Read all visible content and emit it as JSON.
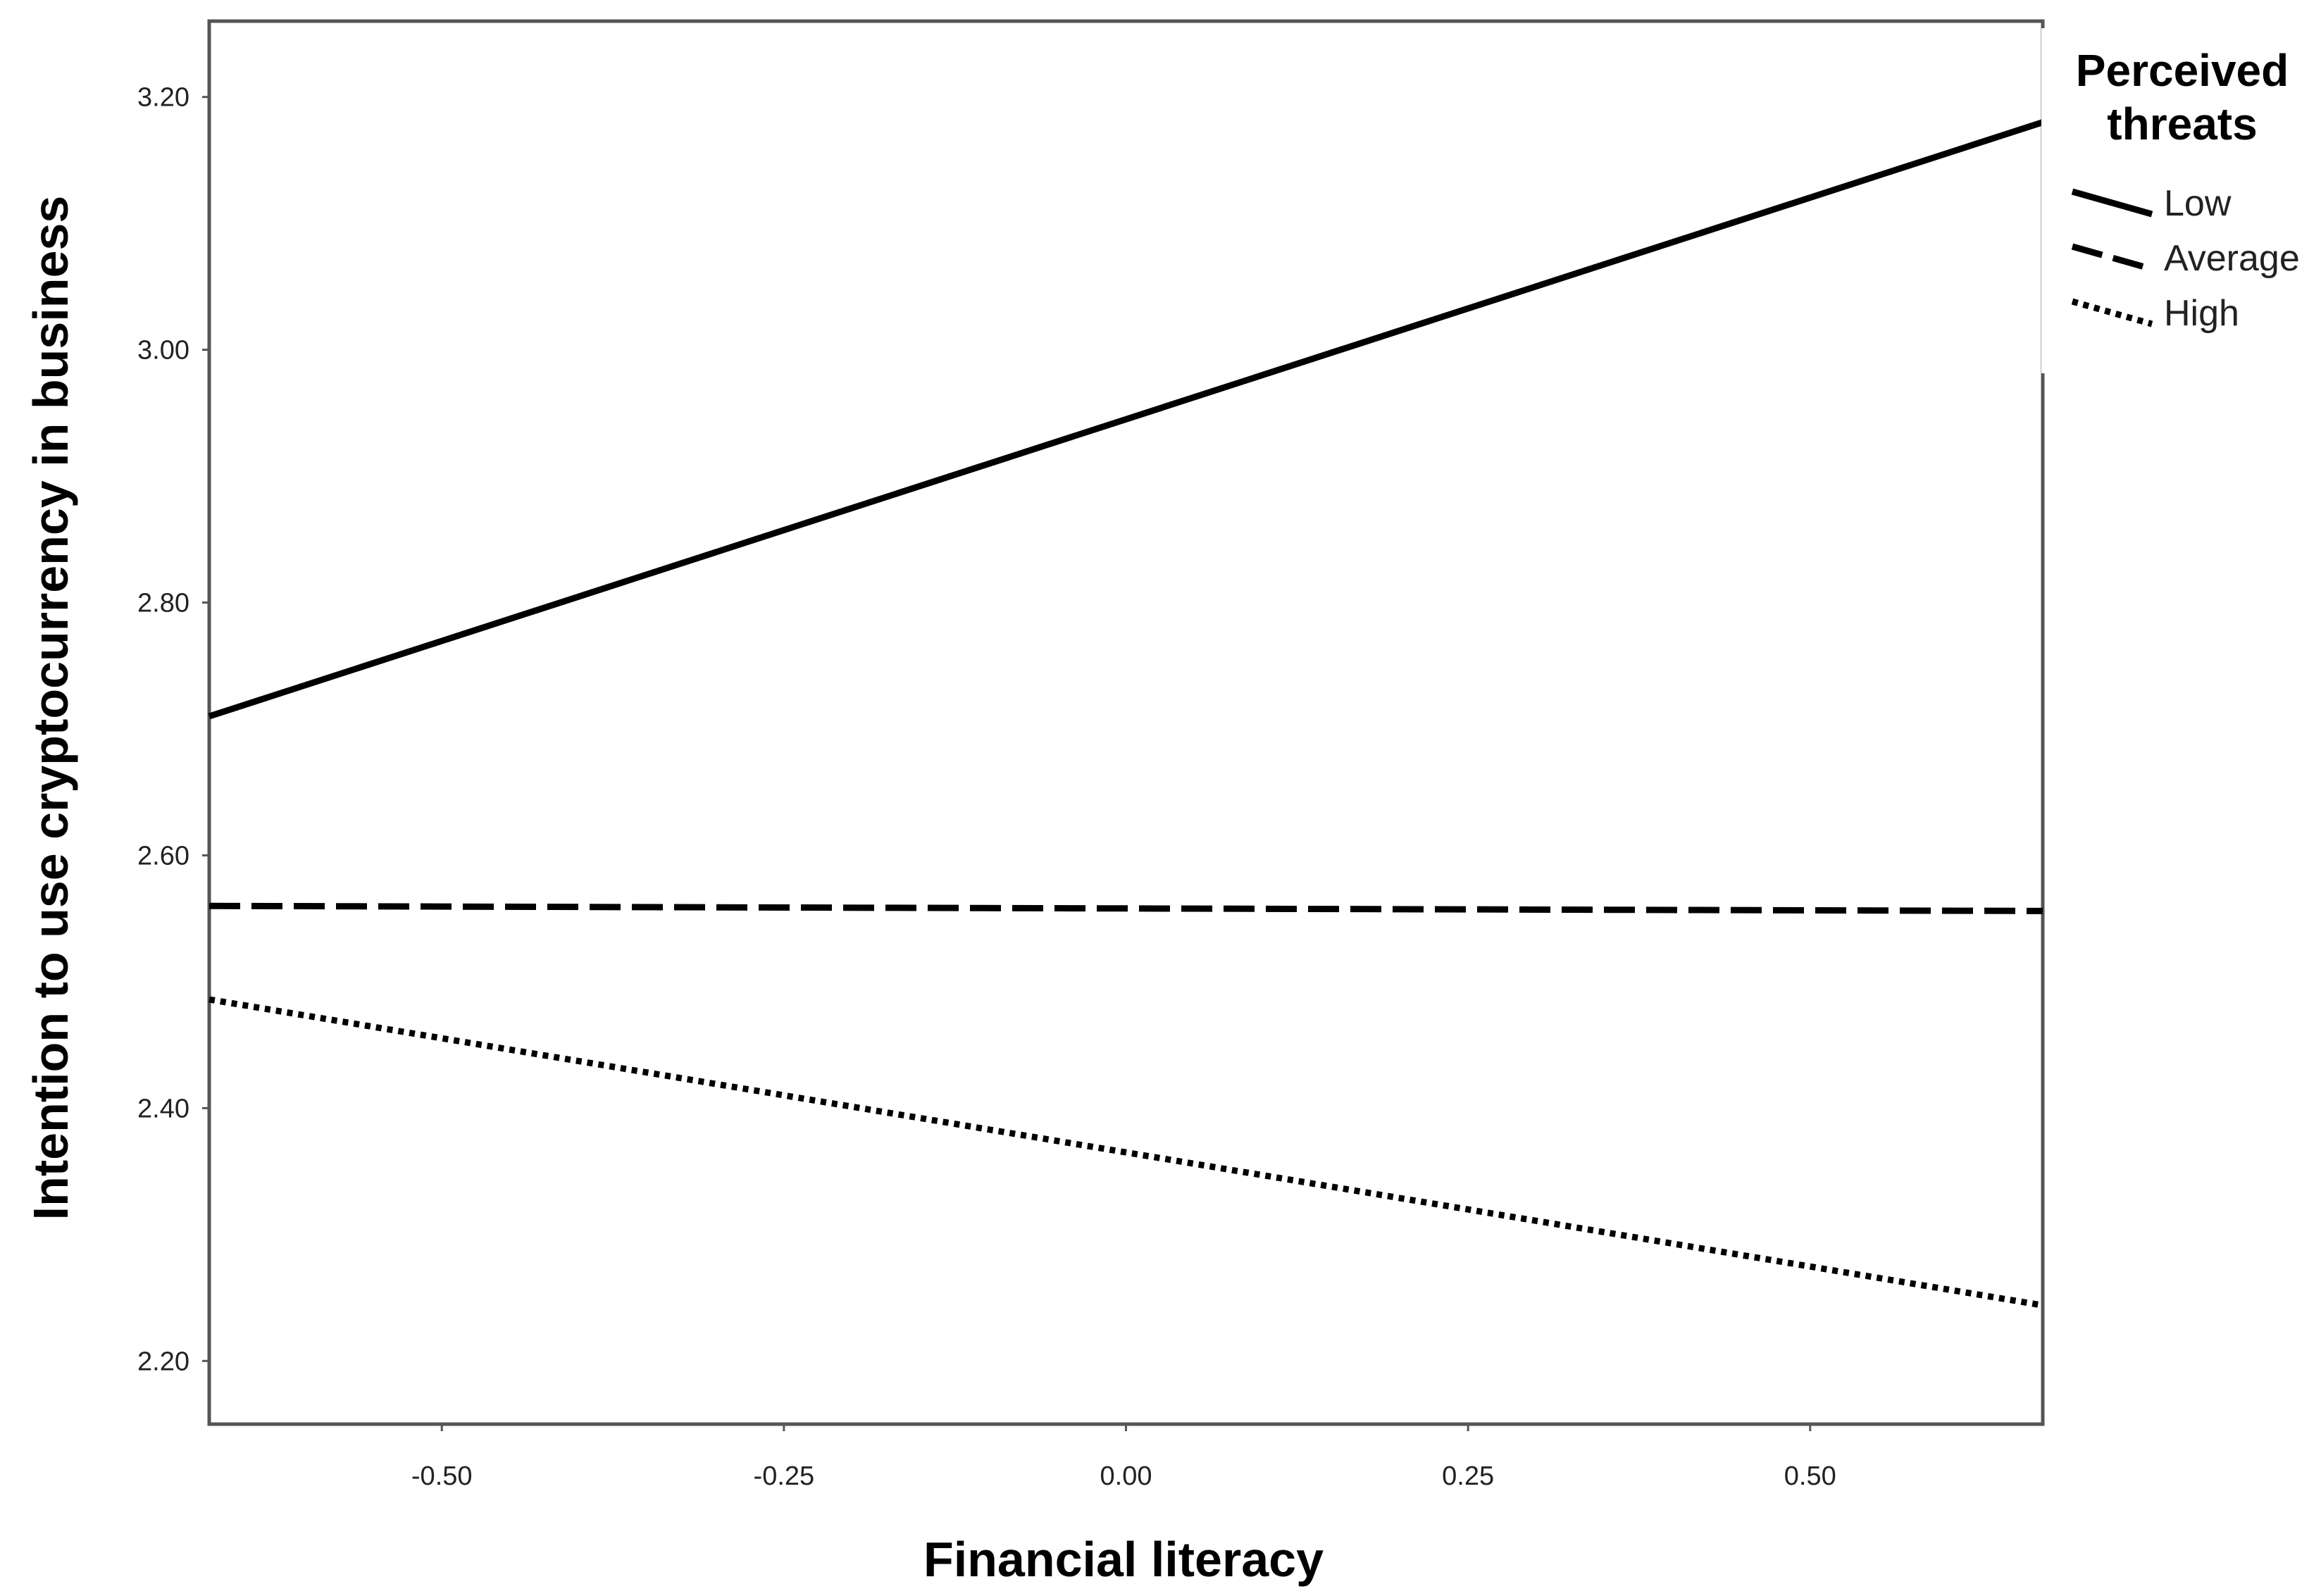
{
  "chart_data": {
    "type": "line",
    "xlabel": "Financial literacy",
    "ylabel": "Intention to use cryptocurrency in business",
    "xlim": [
      -0.67,
      0.67
    ],
    "ylim": [
      2.15,
      3.26
    ],
    "xticks": [
      -0.5,
      -0.25,
      0.0,
      0.25,
      0.5
    ],
    "yticks": [
      2.2,
      2.4,
      2.6,
      2.8,
      3.0,
      3.2
    ],
    "xtick_labels": [
      "-0.50",
      "-0.25",
      "0.00",
      "0.25",
      "0.50"
    ],
    "ytick_labels": [
      "2.20",
      "2.40",
      "2.60",
      "2.80",
      "3.00",
      "3.20"
    ],
    "grid": false,
    "legend_position": "top-right",
    "legend_title_lines": [
      "Perceived",
      "threats"
    ],
    "series": [
      {
        "name": "Low",
        "style": "solid",
        "color": "#000000",
        "x": [
          -0.67,
          0.67
        ],
        "y": [
          2.71,
          3.18
        ]
      },
      {
        "name": "Average",
        "style": "dashed",
        "color": "#000000",
        "x": [
          -0.67,
          0.67
        ],
        "y": [
          2.56,
          2.556
        ]
      },
      {
        "name": "High",
        "style": "dotted",
        "color": "#000000",
        "x": [
          -0.67,
          0.67
        ],
        "y": [
          2.486,
          2.244
        ]
      }
    ]
  }
}
